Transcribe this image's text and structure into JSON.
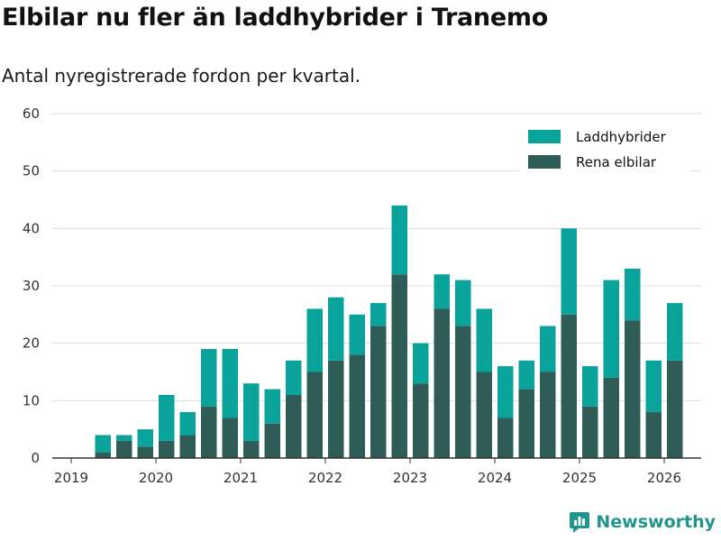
{
  "title": "Elbilar nu fler än laddhybrider i Tranemo",
  "subtitle": "Antal nyregistrerade fordon per kvartal.",
  "brand": "Newsworthy",
  "colors": {
    "laddhybrider": "#0aa39b",
    "elbilar": "#2f5c57",
    "grid": "#dddddd",
    "axis": "#333333"
  },
  "chart_data": {
    "type": "bar",
    "stacked": true,
    "title": "Elbilar nu fler än laddhybrider i Tranemo",
    "subtitle": "Antal nyregistrerade fordon per kvartal.",
    "xlabel": "",
    "ylabel": "",
    "ylim": [
      0,
      60
    ],
    "yticks": [
      0,
      10,
      20,
      30,
      40,
      50,
      60
    ],
    "xticks": [
      "2019",
      "2020",
      "2021",
      "2022",
      "2023",
      "2024",
      "2025",
      "2026"
    ],
    "categories": [
      "2019 Q2",
      "2019 Q3",
      "2019 Q4",
      "2020 Q1",
      "2020 Q2",
      "2020 Q3",
      "2020 Q4",
      "2021 Q1",
      "2021 Q2",
      "2021 Q3",
      "2021 Q4",
      "2022 Q1",
      "2022 Q2",
      "2022 Q3",
      "2022 Q4",
      "2023 Q1",
      "2023 Q2",
      "2023 Q3",
      "2023 Q4",
      "2024 Q1",
      "2024 Q2",
      "2024 Q3",
      "2024 Q4",
      "2025 Q1",
      "2025 Q2",
      "2025 Q3",
      "2025 Q4",
      "2026 Q1"
    ],
    "series": [
      {
        "name": "Rena elbilar",
        "values": [
          1,
          3,
          2,
          3,
          4,
          9,
          7,
          3,
          6,
          11,
          15,
          17,
          18,
          23,
          32,
          13,
          26,
          23,
          15,
          7,
          12,
          15,
          25,
          9,
          14,
          24,
          8,
          17
        ]
      },
      {
        "name": "Laddhybrider",
        "values": [
          3,
          1,
          3,
          8,
          4,
          10,
          12,
          10,
          6,
          6,
          11,
          11,
          7,
          4,
          12,
          7,
          6,
          8,
          11,
          9,
          5,
          8,
          15,
          7,
          17,
          9,
          9,
          10
        ]
      }
    ],
    "legend": [
      "Laddhybrider",
      "Rena elbilar"
    ],
    "legend_position": "top-right",
    "grid": true
  }
}
